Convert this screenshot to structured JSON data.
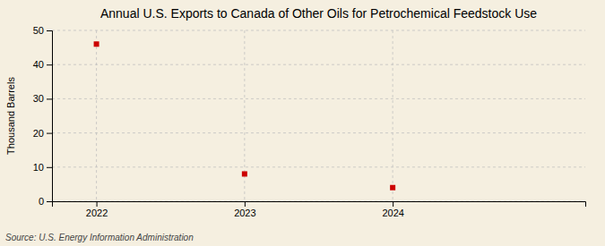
{
  "chart_data": {
    "type": "scatter",
    "title": "Annual U.S. Exports to Canada of Other Oils for Petrochemical Feedstock Use",
    "ylabel": "Thousand Barrels",
    "x": [
      2022,
      2023,
      2024
    ],
    "values": [
      46,
      8,
      4
    ],
    "color": "#CC0000",
    "marker": "square",
    "xlim": [
      2021.7,
      2025.3
    ],
    "xticks": [
      2022,
      2023,
      2024
    ],
    "ylim": [
      0,
      50
    ],
    "yticks": [
      0,
      10,
      20,
      30,
      40,
      50
    ],
    "grid": true,
    "annotations": [
      "Source: U.S. Energy Information Administration"
    ]
  }
}
